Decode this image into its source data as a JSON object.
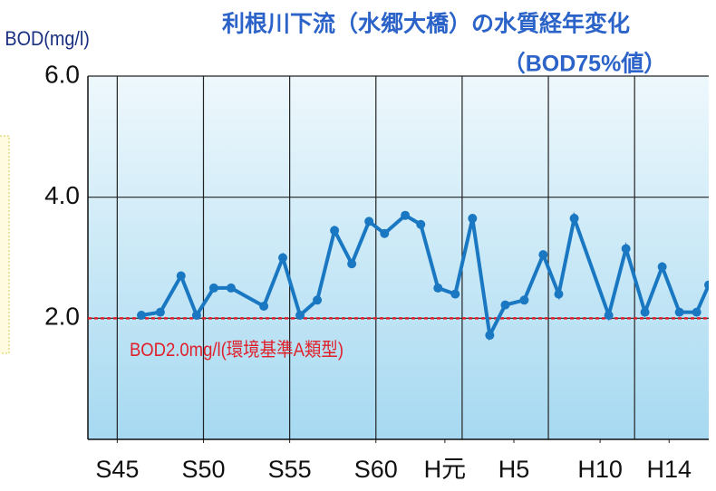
{
  "chart_data": {
    "type": "line",
    "title": "利根川下流（水郷大橋）の水質経年変化",
    "subtitle": "（BOD75%値）",
    "y_label": "BOD(mg/l)",
    "x": [
      1971.4,
      1972.5,
      1973.7,
      1974.6,
      1975.6,
      1976.6,
      1978.5,
      1979.6,
      1980.6,
      1981.6,
      1982.6,
      1983.6,
      1984.6,
      1985.5,
      1986.7,
      1987.6,
      1988.6,
      1989.6,
      1990.6,
      1991.6,
      1992.5,
      1993.6,
      1994.7,
      1995.6,
      1996.5,
      1998.5,
      1999.5,
      2000.6,
      2001.6,
      2002.6,
      2003.6,
      2004.3
    ],
    "series": [
      {
        "name": "BOD75%値",
        "color": "#1a78c2",
        "values": [
          2.05,
          2.1,
          2.7,
          2.05,
          2.5,
          2.5,
          2.2,
          3.0,
          2.05,
          2.3,
          3.45,
          2.9,
          3.6,
          3.4,
          3.7,
          3.55,
          2.5,
          2.4,
          3.65,
          1.72,
          2.22,
          2.3,
          3.05,
          2.4,
          3.65,
          2.05,
          3.15,
          2.1,
          2.85,
          2.1,
          2.1,
          2.55
        ]
      }
    ],
    "xlim": [
      1968.3,
      2004.3
    ],
    "xticks": [
      {
        "value": 1970,
        "label": "S45"
      },
      {
        "value": 1975,
        "label": "S50"
      },
      {
        "value": 1980,
        "label": "S55"
      },
      {
        "value": 1985,
        "label": "S60"
      },
      {
        "value": 1989,
        "label": "H元"
      },
      {
        "value": 1993,
        "label": "H5"
      },
      {
        "value": 1998,
        "label": "H10"
      },
      {
        "value": 2002,
        "label": "H14"
      }
    ],
    "xgrid": [
      1970,
      1975,
      1980,
      1985,
      1990,
      1995,
      2000
    ],
    "ylim": [
      0,
      6
    ],
    "yticks": [
      {
        "value": 2,
        "label": "2.0"
      },
      {
        "value": 4,
        "label": "4.0"
      },
      {
        "value": 6,
        "label": "6.0"
      }
    ],
    "reference": {
      "value": 2,
      "label": "BOD2.0mg/l(環境基準A類型)",
      "color": "#e0202a"
    },
    "grid": true
  }
}
